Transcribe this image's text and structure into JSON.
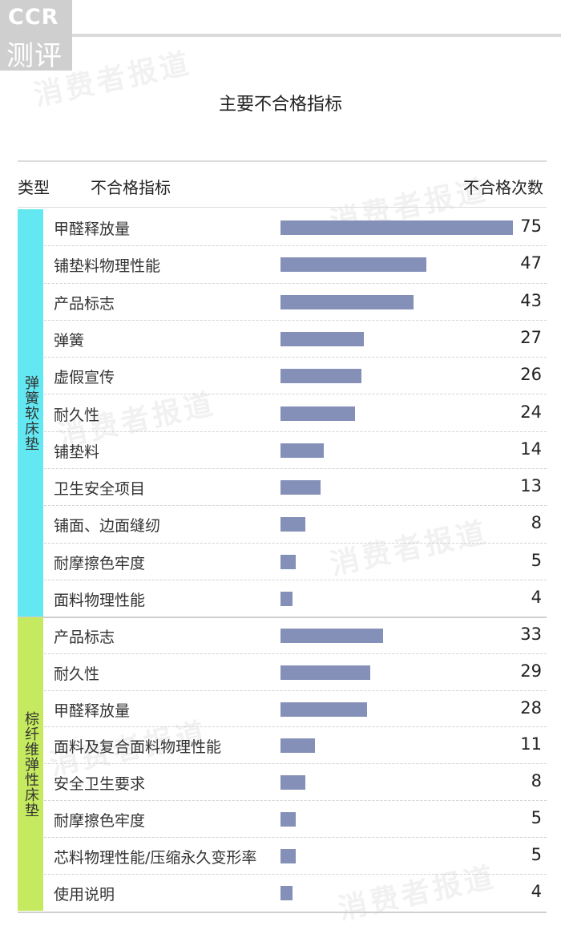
{
  "brand": {
    "line1": "CCR",
    "line2": "测评"
  },
  "watermark": "消费者报道",
  "title": "主要不合格指标",
  "headers": {
    "type": "类型",
    "indicator": "不合格指标",
    "count": "不合格次数"
  },
  "colors": {
    "bar": "#8590b8",
    "group1": "#63e8f2",
    "group2": "#c6ea5f"
  },
  "chart_data": {
    "type": "bar",
    "orientation": "horizontal",
    "title": "主要不合格指标",
    "xlim": [
      0,
      75
    ],
    "groups": [
      {
        "name": "弹簧软床垫",
        "categories": [
          "甲醛释放量",
          "铺垫料物理性能",
          "产品标志",
          "弹簧",
          "虚假宣传",
          "耐久性",
          "铺垫料",
          "卫生安全项目",
          "铺面、边面缝纫",
          "耐摩擦色牢度",
          "面料物理性能"
        ],
        "values": [
          75,
          47,
          43,
          27,
          26,
          24,
          14,
          13,
          8,
          5,
          4
        ]
      },
      {
        "name": "棕纤维弹性床垫",
        "categories": [
          "产品标志",
          "耐久性",
          "甲醛释放量",
          "面料及复合面料物理性能",
          "安全卫生要求",
          "耐摩擦色牢度",
          "芯料物理性能/压缩永久变形率",
          "使用说明"
        ],
        "values": [
          33,
          29,
          28,
          11,
          8,
          5,
          5,
          4
        ]
      }
    ]
  }
}
